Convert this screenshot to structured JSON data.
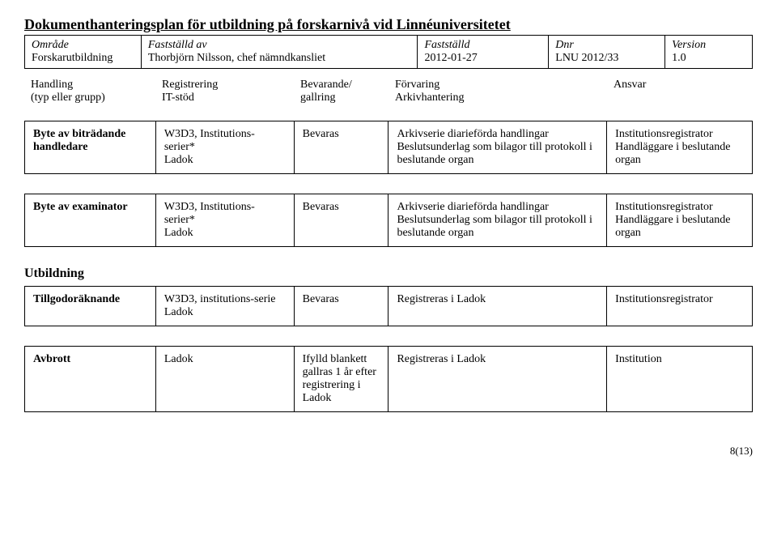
{
  "title": "Dokumenthanteringsplan för utbildning på forskarnivå vid Linnéuniversitetet",
  "meta": {
    "c1": {
      "label": "Område",
      "value": "Forskarutbildning"
    },
    "c2": {
      "label": "Fastställd av",
      "value": "Thorbjörn Nilsson, chef nämndkansliet"
    },
    "c3": {
      "label": "Fastställd",
      "value": "2012-01-27"
    },
    "c4": {
      "label": "Dnr",
      "value": "LNU 2012/33"
    },
    "c5": {
      "label": "Version",
      "value": "1.0"
    }
  },
  "hdr": {
    "c1a": "Handling",
    "c1b": "(typ eller grupp)",
    "c2a": "Registrering",
    "c2b": "IT-stöd",
    "c3a": "Bevarande/",
    "c3b": "gallring",
    "c4a": "Förvaring",
    "c4b": "Arkivhantering",
    "c5a": "Ansvar"
  },
  "rows": {
    "r1": {
      "c1": "Byte av biträdande handledare",
      "c2": "W3D3, Institutions-serier*\nLadok",
      "c3": "Bevaras",
      "c4": "Arkivserie diarieförda handlingar\nBeslutsunderlag som bilagor till protokoll i beslutande organ",
      "c5": "Institutionsregistrator\nHandläggare i beslutande organ"
    },
    "r2": {
      "c1": "Byte av examinator",
      "c2": "W3D3, Institutions-serier*\nLadok",
      "c3": "Bevaras",
      "c4": "Arkivserie diarieförda handlingar\nBeslutsunderlag som bilagor till protokoll i beslutande organ",
      "c5": "Institutionsregistrator\nHandläggare i beslutande organ"
    },
    "r3": {
      "c1": "Tillgodoräknande",
      "c2": "W3D3, institutions-serie\nLadok",
      "c3": "Bevaras",
      "c4": "Registreras i Ladok",
      "c5": "Institutionsregistrator"
    },
    "r4": {
      "c1": "Avbrott",
      "c2": "Ladok",
      "c3": "Ifylld blankett gallras 1 år efter registrering i Ladok",
      "c4": "Registreras i Ladok",
      "c5": "Institution"
    }
  },
  "section": "Utbildning",
  "pagenum": "8(13)"
}
